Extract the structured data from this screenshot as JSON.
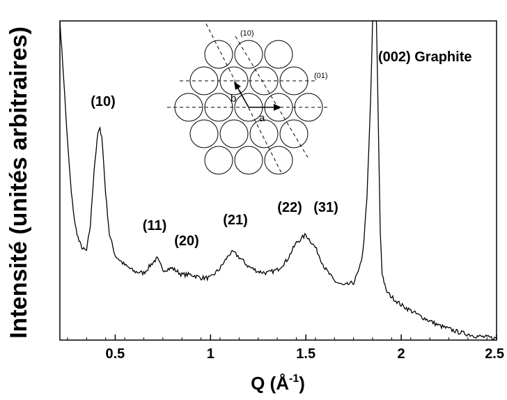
{
  "chart_data": {
    "type": "line",
    "title": "",
    "xlabel": "Q (Å",
    "xlabel_sup": "-1",
    "xlabel_close": ")",
    "ylabel": "Intensité (unités arbitraires)",
    "xlim": [
      0.21,
      2.5
    ],
    "ylim": [
      0,
      100
    ],
    "y_ticks_labeled": false,
    "x_ticks": [
      0.5,
      1,
      1.5,
      2,
      2.5
    ],
    "x_tick_labels": [
      "0.5",
      "1",
      "1.5",
      "2",
      "2.5"
    ],
    "grid": false,
    "series": [
      {
        "x": [
          0.21,
          0.23,
          0.25,
          0.27,
          0.29,
          0.31,
          0.33,
          0.35,
          0.37,
          0.39,
          0.41,
          0.42,
          0.43,
          0.45,
          0.47,
          0.5,
          0.55,
          0.6,
          0.65,
          0.7,
          0.72,
          0.75,
          0.8,
          0.85,
          0.9,
          0.95,
          1.0,
          1.05,
          1.1,
          1.12,
          1.15,
          1.2,
          1.25,
          1.3,
          1.35,
          1.4,
          1.45,
          1.5,
          1.55,
          1.6,
          1.65,
          1.7,
          1.75,
          1.78,
          1.8,
          1.82,
          1.84,
          1.85,
          1.86,
          1.87,
          1.88,
          1.89,
          1.9,
          1.92,
          1.95,
          2.0,
          2.1,
          2.2,
          2.3,
          2.4,
          2.5
        ],
        "y": [
          100,
          82,
          62,
          46,
          36,
          31,
          28.5,
          28,
          36,
          54,
          65,
          66,
          64,
          46,
          33,
          26.5,
          23.5,
          21.5,
          21,
          24.5,
          25.5,
          22,
          22.5,
          20.5,
          20.5,
          19.5,
          19.5,
          22.5,
          27,
          27.5,
          26,
          23,
          21.5,
          21,
          22,
          25,
          30.5,
          33,
          29,
          22.5,
          18.5,
          17,
          18,
          22,
          28,
          44,
          76,
          100,
          100,
          100,
          68,
          34,
          21,
          15.5,
          13.5,
          11,
          7.5,
          4.5,
          2.5,
          1.2,
          0.5
        ]
      }
    ],
    "annotations": [
      "(10)",
      "(11)",
      "(20)",
      "(21)",
      "(22)",
      "(31)",
      "(002) Graphite"
    ],
    "inset": {
      "description": "hexagonal lattice of circles",
      "labels": {
        "dir_10": "(10)",
        "dir_01": "(01)",
        "vec_a": "a",
        "vec_b": "b"
      }
    }
  }
}
